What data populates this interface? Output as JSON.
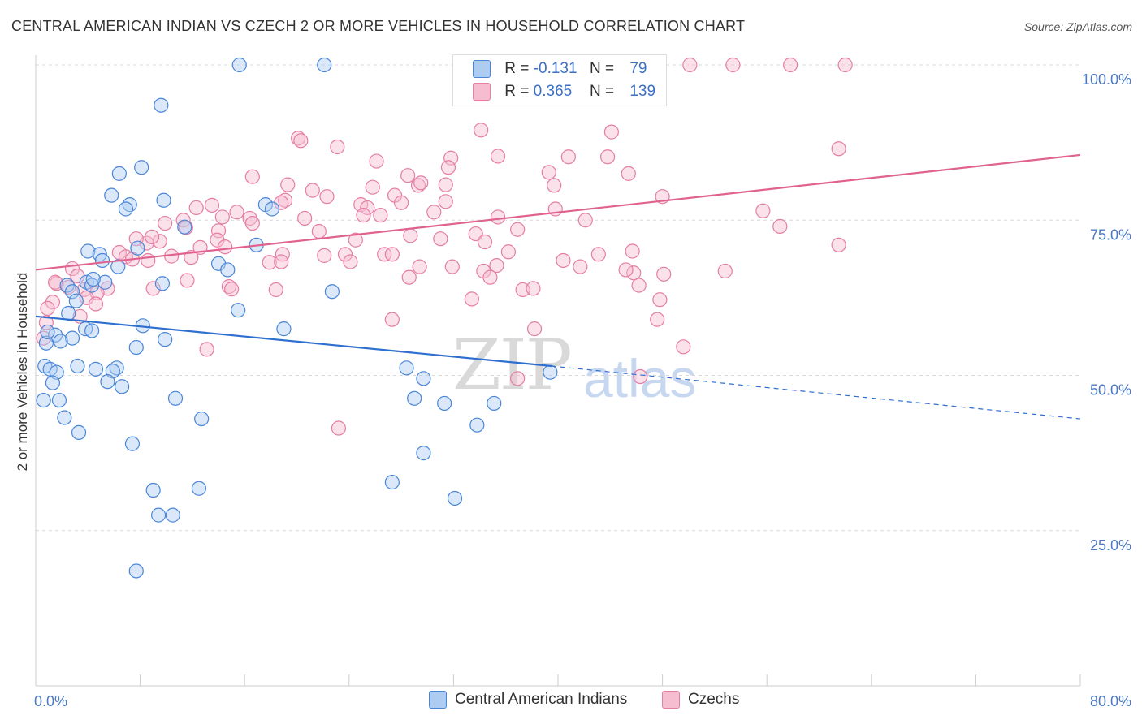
{
  "title": "CENTRAL AMERICAN INDIAN VS CZECH 2 OR MORE VEHICLES IN HOUSEHOLD CORRELATION CHART",
  "source": "Source: ZipAtlas.com",
  "watermark": {
    "zip": "ZIP",
    "atlas": "atlas"
  },
  "legend_top": {
    "row1": {
      "r_label": "R =",
      "r_value": "-0.131",
      "n_label": "N =",
      "n_value": "79"
    },
    "row2": {
      "r_label": "R =",
      "r_value": "0.365",
      "n_label": "N =",
      "n_value": "139"
    }
  },
  "legend_bottom": {
    "series1": "Central American Indians",
    "series2": "Czechs"
  },
  "colors": {
    "blue_fill": "#aecbf2",
    "blue_stroke": "#4a86d8",
    "blue_line": "#2f6fcf",
    "pink_fill": "#f6bcd0",
    "pink_stroke": "#e57ea4",
    "pink_line": "#e0638f",
    "grid": "#d8d8d8",
    "tick_text": "#4a78c2"
  },
  "chart_data": {
    "type": "scatter",
    "title": "CENTRAL AMERICAN INDIAN VS CZECH 2 OR MORE VEHICLES IN HOUSEHOLD CORRELATION CHART",
    "xlabel": "",
    "ylabel": "2 or more Vehicles in Household",
    "xlim": [
      0,
      80
    ],
    "ylim": [
      0,
      100
    ],
    "x_ticks": [
      "0.0%",
      "80.0%"
    ],
    "y_ticks": [
      "25.0%",
      "50.0%",
      "75.0%",
      "100.0%"
    ],
    "grid": true,
    "legend": "top-center",
    "series": [
      {
        "name": "Central American Indians",
        "R": -0.131,
        "N": 79,
        "trend": {
          "x0": 0,
          "y0": 59.5,
          "x1": 39.5,
          "y1": 51.5,
          "x_dash_end": 80,
          "y_dash_end": 43
        },
        "points": [
          [
            15.6,
            100
          ],
          [
            22.1,
            100
          ],
          [
            9.6,
            93.5
          ],
          [
            8.1,
            83.5
          ],
          [
            6.4,
            82.5
          ],
          [
            5.8,
            79
          ],
          [
            9.8,
            78.2
          ],
          [
            7.2,
            77.5
          ],
          [
            6.9,
            76.8
          ],
          [
            17.6,
            77.5
          ],
          [
            18.1,
            76.8
          ],
          [
            11.4,
            73.9
          ],
          [
            7.8,
            70.5
          ],
          [
            16.9,
            71
          ],
          [
            4,
            70
          ],
          [
            4.9,
            69.5
          ],
          [
            5.1,
            68.5
          ],
          [
            6.3,
            67.5
          ],
          [
            14,
            68
          ],
          [
            14.7,
            67
          ],
          [
            3.9,
            65
          ],
          [
            4.3,
            64.5
          ],
          [
            5.3,
            65
          ],
          [
            4.4,
            65.5
          ],
          [
            2.4,
            64.5
          ],
          [
            2.8,
            63.5
          ],
          [
            9.7,
            64.8
          ],
          [
            22.7,
            63.5
          ],
          [
            3.1,
            62
          ],
          [
            15.5,
            60.5
          ],
          [
            2.5,
            60
          ],
          [
            8.2,
            58
          ],
          [
            19,
            57.5
          ],
          [
            3.8,
            57.5
          ],
          [
            4.3,
            57.2
          ],
          [
            1.5,
            56.5
          ],
          [
            2.8,
            56
          ],
          [
            1.9,
            55.5
          ],
          [
            9.9,
            55.8
          ],
          [
            0.8,
            55.2
          ],
          [
            7.7,
            54.5
          ],
          [
            0.7,
            51.5
          ],
          [
            1.1,
            51
          ],
          [
            3.2,
            51.5
          ],
          [
            4.6,
            51
          ],
          [
            6.2,
            51.2
          ],
          [
            5.9,
            50.7
          ],
          [
            1.6,
            50.5
          ],
          [
            28.4,
            51.2
          ],
          [
            29.7,
            49.5
          ],
          [
            5.5,
            49
          ],
          [
            1.3,
            48.8
          ],
          [
            6.6,
            48.2
          ],
          [
            0.6,
            46
          ],
          [
            1.8,
            46
          ],
          [
            10.7,
            46.3
          ],
          [
            29,
            46.3
          ],
          [
            31.3,
            45.5
          ],
          [
            35.1,
            45.5
          ],
          [
            2.2,
            43.2
          ],
          [
            12.7,
            43
          ],
          [
            33.8,
            42
          ],
          [
            3.3,
            40.8
          ],
          [
            7.4,
            39
          ],
          [
            29.7,
            37.5
          ],
          [
            27.3,
            32.8
          ],
          [
            9,
            31.5
          ],
          [
            12.5,
            31.8
          ],
          [
            32.1,
            30.2
          ],
          [
            9.4,
            27.5
          ],
          [
            10.5,
            27.5
          ],
          [
            7.7,
            18.5
          ],
          [
            39.4,
            50.5
          ],
          [
            0.9,
            57
          ]
        ]
      },
      {
        "name": "Czechs",
        "R": 0.365,
        "N": 139,
        "trend": {
          "x0": 0,
          "y0": 67,
          "x1": 80,
          "y1": 85.5
        },
        "points": [
          [
            41.3,
            100
          ],
          [
            50.1,
            100
          ],
          [
            53.4,
            100
          ],
          [
            57.8,
            100
          ],
          [
            62,
            100
          ],
          [
            34.1,
            89.5
          ],
          [
            44.1,
            89.2
          ],
          [
            20.1,
            88.2
          ],
          [
            20.3,
            87.8
          ],
          [
            23.1,
            86.8
          ],
          [
            61.5,
            86.5
          ],
          [
            26.1,
            84.5
          ],
          [
            31.8,
            85
          ],
          [
            35.4,
            85.3
          ],
          [
            40.8,
            85.2
          ],
          [
            43.8,
            85.2
          ],
          [
            39.3,
            82.7
          ],
          [
            45.4,
            82.5
          ],
          [
            16.6,
            82
          ],
          [
            28.5,
            82.2
          ],
          [
            19.3,
            80.7
          ],
          [
            25.8,
            80.3
          ],
          [
            31.4,
            80.7
          ],
          [
            39.7,
            80.6
          ],
          [
            21.2,
            79.8
          ],
          [
            29.3,
            80.6
          ],
          [
            22.3,
            78.8
          ],
          [
            27.5,
            79
          ],
          [
            48,
            78.8
          ],
          [
            19.1,
            78.2
          ],
          [
            18.8,
            77.8
          ],
          [
            31.4,
            78
          ],
          [
            28,
            77.8
          ],
          [
            24.9,
            77.5
          ],
          [
            13.5,
            77.4
          ],
          [
            12.3,
            77
          ],
          [
            25.4,
            77
          ],
          [
            39.8,
            76.8
          ],
          [
            26.4,
            75.8
          ],
          [
            25.1,
            75.8
          ],
          [
            35.4,
            75.5
          ],
          [
            30.5,
            76.3
          ],
          [
            55.7,
            76.5
          ],
          [
            15.4,
            76.3
          ],
          [
            16.4,
            75.3
          ],
          [
            14.3,
            75.5
          ],
          [
            11.3,
            75
          ],
          [
            20.6,
            75.3
          ],
          [
            9.9,
            74.5
          ],
          [
            16.6,
            74.5
          ],
          [
            11.5,
            73.8
          ],
          [
            42.1,
            75
          ],
          [
            57,
            74
          ],
          [
            36.9,
            73.5
          ],
          [
            21.7,
            73.2
          ],
          [
            14,
            73.3
          ],
          [
            33.7,
            72.8
          ],
          [
            24.5,
            71.8
          ],
          [
            28.7,
            72.5
          ],
          [
            31,
            72
          ],
          [
            34.4,
            71.5
          ],
          [
            13.9,
            71.8
          ],
          [
            9.5,
            71.6
          ],
          [
            8.5,
            71.3
          ],
          [
            8.9,
            72.3
          ],
          [
            7.7,
            72
          ],
          [
            12.6,
            70.6
          ],
          [
            14.5,
            70.7
          ],
          [
            18.9,
            69.5
          ],
          [
            22.1,
            69.3
          ],
          [
            26.7,
            69.5
          ],
          [
            36.2,
            69.9
          ],
          [
            45.7,
            70
          ],
          [
            61.5,
            71
          ],
          [
            6.4,
            69.8
          ],
          [
            6.9,
            69.1
          ],
          [
            10.4,
            69.2
          ],
          [
            11.9,
            69
          ],
          [
            7.4,
            68.7
          ],
          [
            27.3,
            69.5
          ],
          [
            23.7,
            69.5
          ],
          [
            40.4,
            68.5
          ],
          [
            43.1,
            69.5
          ],
          [
            17.9,
            68.2
          ],
          [
            24.1,
            68.3
          ],
          [
            18.8,
            68.3
          ],
          [
            29.4,
            67.5
          ],
          [
            31.9,
            67.5
          ],
          [
            35.3,
            67.7
          ],
          [
            34.3,
            66.8
          ],
          [
            45.8,
            66.5
          ],
          [
            52.8,
            66.8
          ],
          [
            48.1,
            66.3
          ],
          [
            34.8,
            65.8
          ],
          [
            28.6,
            65.8
          ],
          [
            11.6,
            65.3
          ],
          [
            2.8,
            67.2
          ],
          [
            3.2,
            66
          ],
          [
            1.6,
            64.8
          ],
          [
            2.5,
            64.2
          ],
          [
            5.5,
            64
          ],
          [
            3.7,
            63.8
          ],
          [
            9,
            64
          ],
          [
            18.4,
            63.8
          ],
          [
            14.8,
            64.3
          ],
          [
            15,
            63.9
          ],
          [
            46.2,
            64.5
          ],
          [
            4.7,
            63.3
          ],
          [
            3.9,
            62.5
          ],
          [
            4.6,
            61.5
          ],
          [
            1.3,
            61.8
          ],
          [
            0.9,
            60.8
          ],
          [
            37.3,
            63.8
          ],
          [
            47.8,
            62.2
          ],
          [
            33.4,
            62.3
          ],
          [
            0.8,
            58.5
          ],
          [
            27.3,
            59
          ],
          [
            47.6,
            59
          ],
          [
            38.2,
            57.5
          ],
          [
            0.6,
            56
          ],
          [
            13.1,
            54.2
          ],
          [
            49.6,
            54.6
          ],
          [
            46.3,
            49.8
          ],
          [
            36.9,
            49.5
          ],
          [
            23.2,
            41.5
          ],
          [
            1.5,
            65
          ],
          [
            8.6,
            68.5
          ],
          [
            29.5,
            81
          ],
          [
            31.6,
            83.5
          ],
          [
            41.7,
            67.5
          ],
          [
            38.1,
            64
          ],
          [
            3.4,
            59.5
          ],
          [
            45.2,
            67
          ]
        ]
      }
    ]
  }
}
